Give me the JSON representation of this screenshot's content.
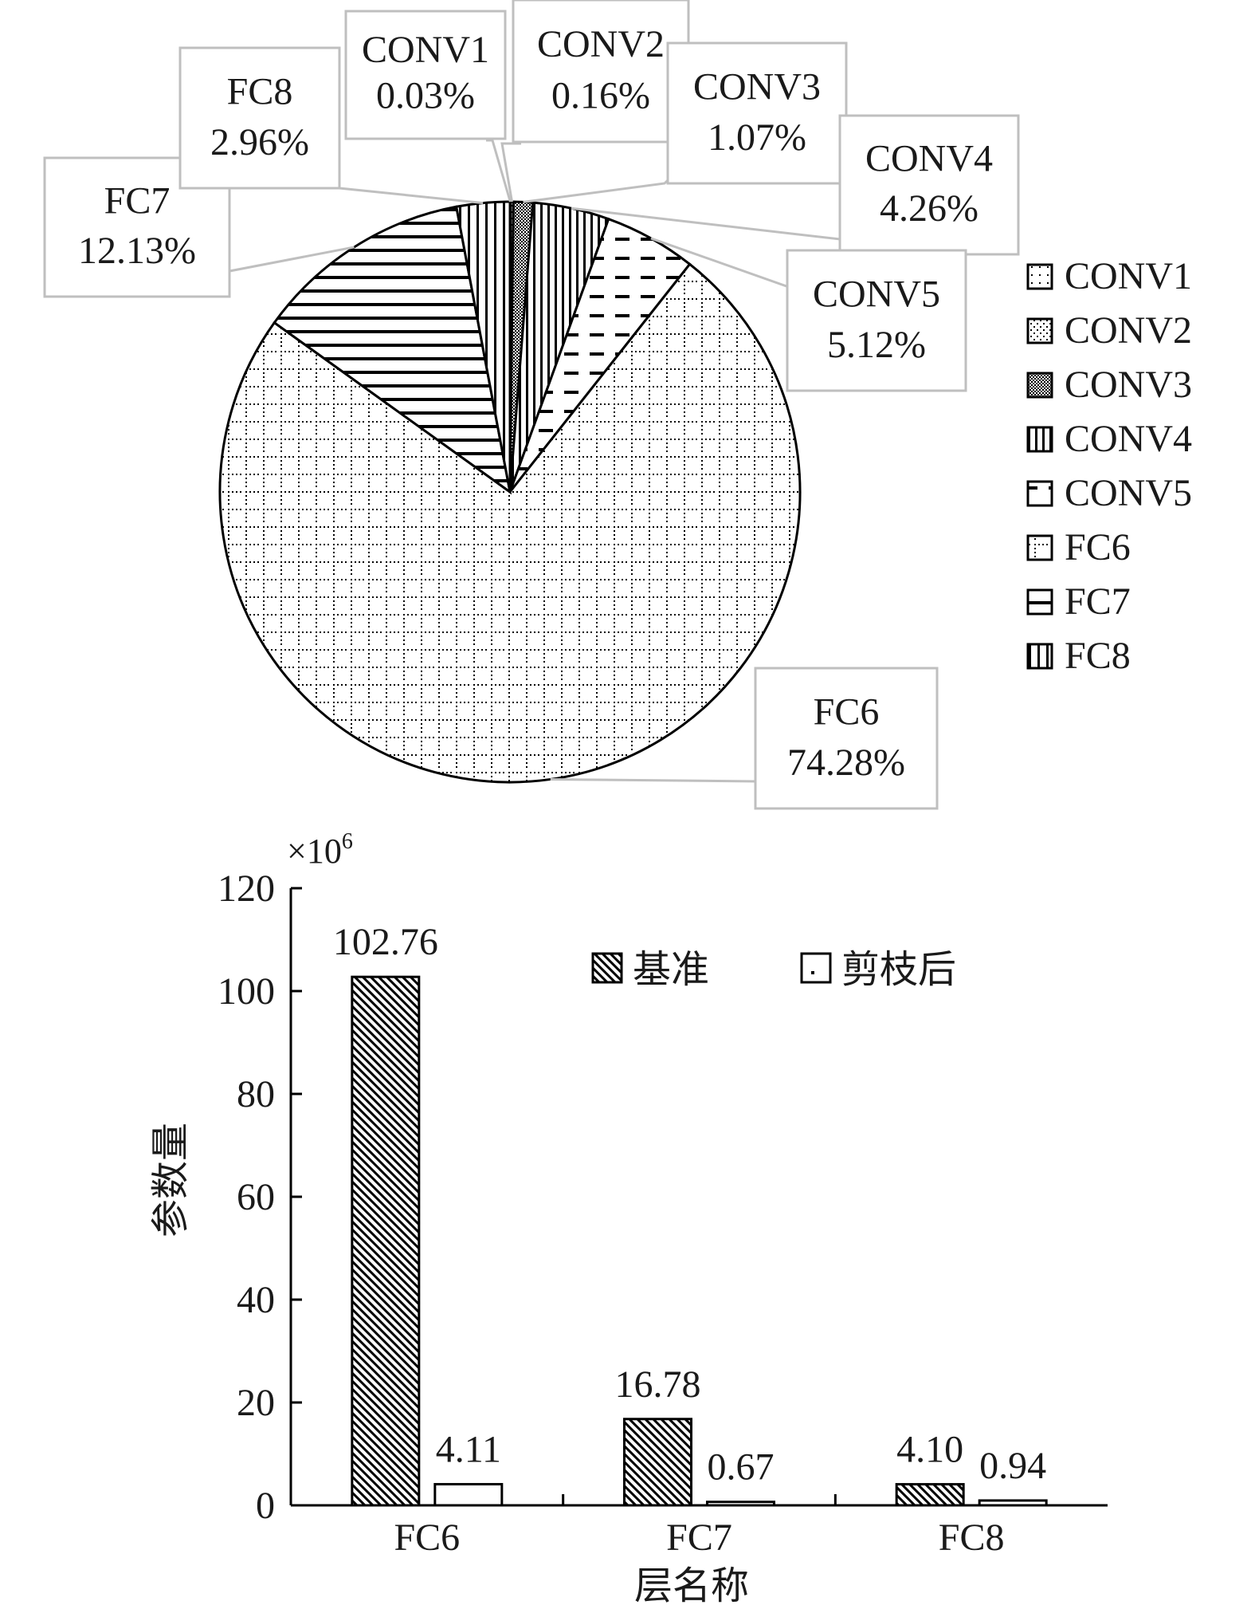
{
  "chart_data": [
    {
      "type": "pie",
      "slices": [
        {
          "name": "CONV1",
          "value": 0.03,
          "label": "0.03%",
          "pattern": "pat-conv1"
        },
        {
          "name": "CONV2",
          "value": 0.16,
          "label": "0.16%",
          "pattern": "pat-conv2"
        },
        {
          "name": "CONV3",
          "value": 1.07,
          "label": "1.07%",
          "pattern": "pat-conv3"
        },
        {
          "name": "CONV4",
          "value": 4.26,
          "label": "4.26%",
          "pattern": "pat-conv4"
        },
        {
          "name": "CONV5",
          "value": 5.12,
          "label": "5.12%",
          "pattern": "pat-conv5"
        },
        {
          "name": "FC6",
          "value": 74.28,
          "label": "74.28%",
          "pattern": "pat-fc6"
        },
        {
          "name": "FC7",
          "value": 12.13,
          "label": "12.13%",
          "pattern": "pat-fc7"
        },
        {
          "name": "FC8",
          "value": 2.96,
          "label": "2.96%",
          "pattern": "pat-fc8"
        }
      ],
      "legend": [
        "CONV1",
        "CONV2",
        "CONV3",
        "CONV4",
        "CONV5",
        "FC6",
        "FC7",
        "FC8"
      ],
      "legend_position": "right"
    },
    {
      "type": "bar",
      "categories": [
        "FC6",
        "FC7",
        "FC8"
      ],
      "series": [
        {
          "name": "基准",
          "values": [
            102.76,
            16.78,
            4.1
          ],
          "labels": [
            "102.76",
            "16.78",
            "4.10"
          ],
          "pattern": "pat-base"
        },
        {
          "name": "剪枝后",
          "values": [
            4.11,
            0.67,
            0.94
          ],
          "labels": [
            "4.11",
            "0.67",
            "0.94"
          ],
          "pattern": "pat-pruned"
        }
      ],
      "xlabel": "层名称",
      "ylabel": "参数量",
      "scale_label": "×10",
      "scale_exp": "6",
      "ylim": [
        0,
        120
      ],
      "yticks": [
        "0",
        "20",
        "40",
        "60",
        "80",
        "100",
        "120"
      ],
      "legend_position": "top-right"
    }
  ]
}
